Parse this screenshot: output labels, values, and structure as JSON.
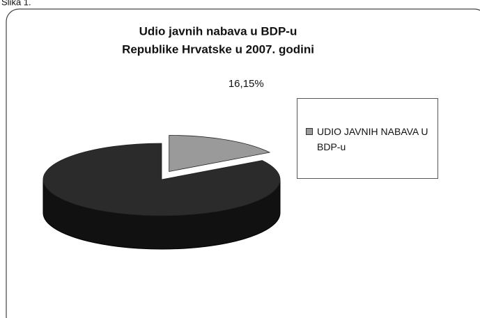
{
  "caption": "Slika 1.",
  "chart_data": {
    "type": "pie",
    "title": [
      "Udio javnih nabava u BDP-u",
      "Republike Hrvatske u 2007. godini"
    ],
    "categories": [
      "UDIO JAVNIH NABAVA U BDP-u",
      null
    ],
    "values": [
      16.15,
      83.85
    ],
    "value_labels": [
      "16,15%",
      null
    ],
    "colors": [
      "#9a9a9a",
      "#2b2b2b"
    ],
    "legend": "right"
  }
}
